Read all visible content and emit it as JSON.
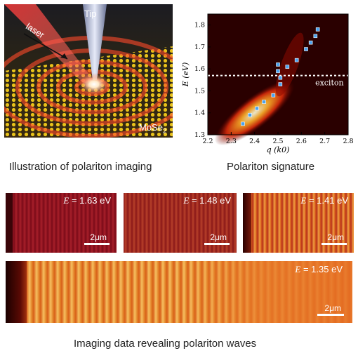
{
  "illustration": {
    "tip_label": "Tip",
    "laser_label": "laser",
    "material_label": "MoSe",
    "material_sub": "2",
    "caption": "Illustration of polariton imaging"
  },
  "plot": {
    "caption": "Polariton signature",
    "exciton_label": "exciton",
    "colors": {
      "dashed": "#ffffff",
      "markers": "#4aa3f0"
    },
    "chart_data": {
      "type": "scatter",
      "xlabel": "q (k0)",
      "ylabel": "E (eV)",
      "xlim": [
        2.2,
        2.8
      ],
      "ylim": [
        1.3,
        1.85
      ],
      "xticks": [
        "2.2",
        "2.3",
        "2.4",
        "2.5",
        "2.6",
        "2.7",
        "2.8"
      ],
      "yticks": [
        "1.3",
        "1.4",
        "1.5",
        "1.6",
        "1.7",
        "1.8"
      ],
      "exciton_energy": 1.57,
      "points": [
        {
          "x": 2.35,
          "y": 1.35
        },
        {
          "x": 2.38,
          "y": 1.39
        },
        {
          "x": 2.41,
          "y": 1.42
        },
        {
          "x": 2.44,
          "y": 1.45
        },
        {
          "x": 2.48,
          "y": 1.48
        },
        {
          "x": 2.51,
          "y": 1.53
        },
        {
          "x": 2.51,
          "y": 1.56
        },
        {
          "x": 2.5,
          "y": 1.59
        },
        {
          "x": 2.5,
          "y": 1.62
        },
        {
          "x": 2.54,
          "y": 1.61
        },
        {
          "x": 2.58,
          "y": 1.64
        },
        {
          "x": 2.62,
          "y": 1.69
        },
        {
          "x": 2.64,
          "y": 1.72
        },
        {
          "x": 2.66,
          "y": 1.75
        },
        {
          "x": 2.67,
          "y": 1.78
        }
      ]
    }
  },
  "imaging": {
    "caption": "Imaging data revealing polariton waves",
    "panels": [
      {
        "energy_var": "E",
        "energy_text": " = 1.63 eV",
        "scale": "2μm"
      },
      {
        "energy_var": "E",
        "energy_text": " = 1.48 eV",
        "scale": "2μm"
      },
      {
        "energy_var": "E",
        "energy_text": " = 1.41 eV",
        "scale": "2μm"
      },
      {
        "energy_var": "E",
        "energy_text": " = 1.35 eV",
        "scale": "2μm"
      }
    ]
  }
}
